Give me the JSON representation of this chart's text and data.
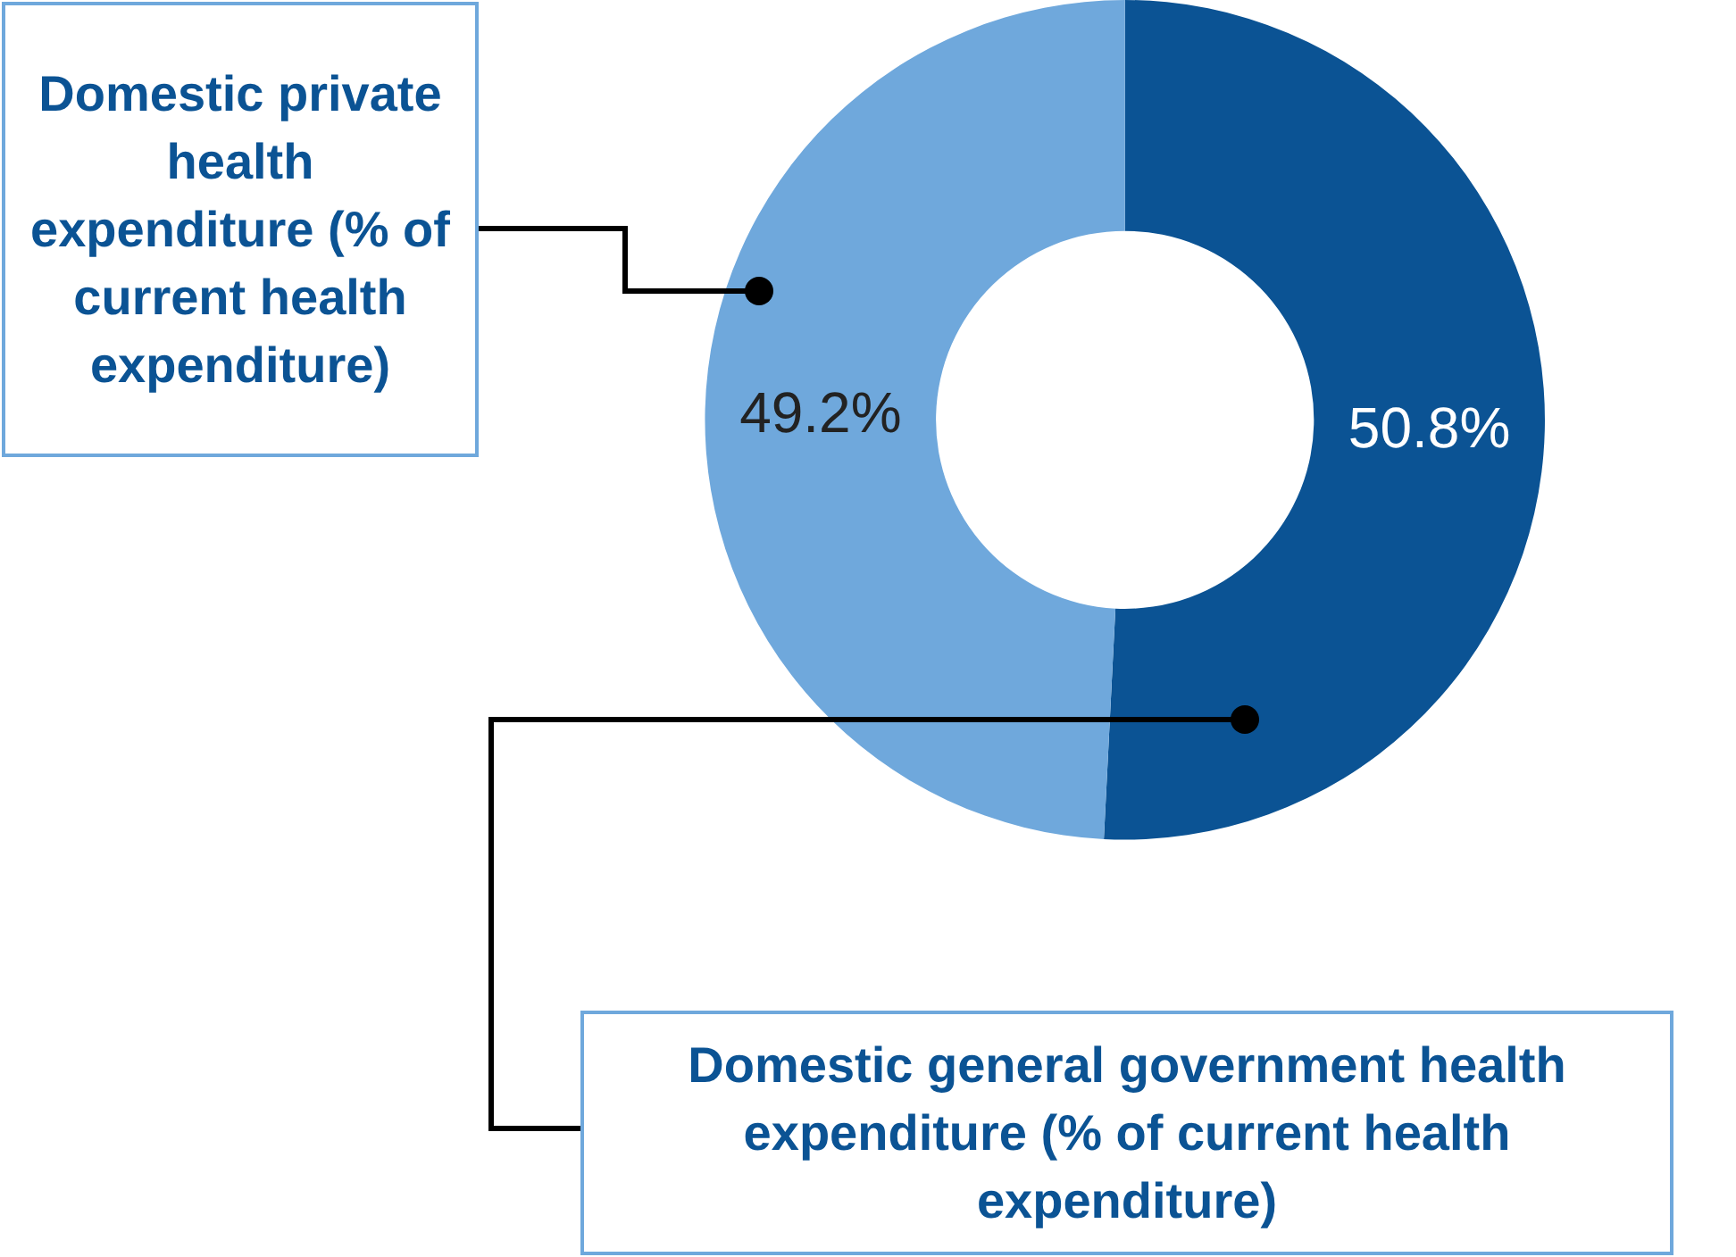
{
  "chart_data": {
    "type": "donut",
    "categories": [
      "Domestic general government health expenditure (% of current health expenditure)",
      "Domestic private health expenditure (% of current health expenditure)"
    ],
    "values": [
      50.8,
      49.2
    ],
    "colors": [
      "#0b5394",
      "#6fa8dc"
    ],
    "value_labels": [
      "50.8%",
      "49.2%"
    ],
    "legend": false
  }
}
